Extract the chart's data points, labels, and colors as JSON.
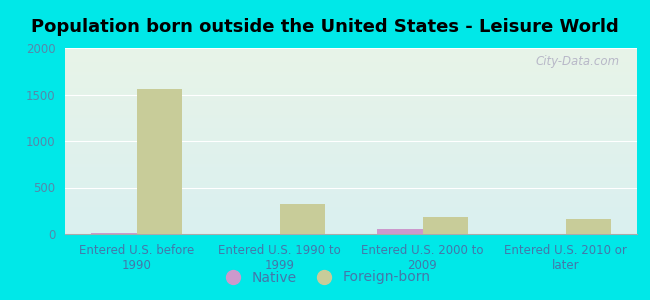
{
  "title": "Population born outside the United States - Leisure World",
  "categories": [
    "Entered U.S. before\n1990",
    "Entered U.S. 1990 to\n1999",
    "Entered U.S. 2000 to\n2009",
    "Entered U.S. 2010 or\nlater"
  ],
  "native_values": [
    10,
    5,
    55,
    0
  ],
  "foreign_born_values": [
    1555,
    325,
    185,
    165
  ],
  "native_color": "#cc99cc",
  "foreign_born_color": "#c8cc99",
  "background_color": "#00e8e8",
  "plot_bg_top": "#e8f4e8",
  "plot_bg_bottom": "#daf0f0",
  "ylim": [
    0,
    2000
  ],
  "yticks": [
    0,
    500,
    1000,
    1500,
    2000
  ],
  "title_fontsize": 13,
  "tick_label_fontsize": 8.5,
  "legend_fontsize": 10,
  "bar_width": 0.32,
  "watermark_text": "City-Data.com",
  "watermark_color": "#b8b8c8",
  "tick_color": "#5588aa",
  "label_color": "#4477aa"
}
